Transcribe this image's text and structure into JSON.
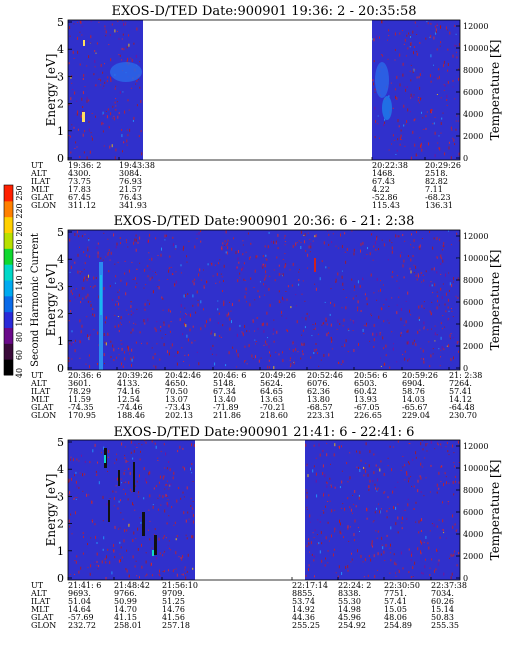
{
  "figure": {
    "colorbar": {
      "label": "Second Harmonic Current",
      "ticks": [
        "40",
        "60",
        "80",
        "100",
        "120",
        "140",
        "160",
        "180",
        "200",
        "220",
        "250"
      ],
      "colors": [
        "#000000",
        "#3a0a3a",
        "#6a0a8a",
        "#2a2ad8",
        "#0a6ae8",
        "#00aaf0",
        "#00d8c8",
        "#10d830",
        "#b8e000",
        "#ffd000",
        "#ff8000",
        "#ff2000"
      ]
    },
    "panels": [
      {
        "title": "EXOS-D/TED   Date:900901  19:36: 2 - 20:35:58",
        "ylabel_left": "Energy [eV]",
        "ylabel_right": "Temperature [K]",
        "yticks_left": [
          "0",
          "1",
          "2",
          "3",
          "4",
          "5"
        ],
        "yticks_right": [
          "0",
          "2000",
          "4000",
          "6000",
          "8000",
          "10000",
          "12000"
        ],
        "data_gap": true,
        "row_labels": [
          "UT",
          "ALT",
          "ILAT",
          "MLT",
          "GLAT",
          "GLON"
        ],
        "columns": [
          {
            "side": "left",
            "values": [
              "19:36: 2",
              "4300.",
              "73.75",
              "17.83",
              "67.45",
              "311.12"
            ]
          },
          {
            "side": "left",
            "values": [
              "19:43:38",
              "3084.",
              "76.93",
              "21.57",
              "76.43",
              "341.93"
            ]
          },
          {
            "side": "right",
            "values": [
              "20:22:38",
              "1468.",
              "67.43",
              "4.22",
              "-52.86",
              "115.43"
            ]
          },
          {
            "side": "right",
            "values": [
              "20:29:26",
              "2518.",
              "82.82",
              "7.11",
              "-68.23",
              "136.31"
            ]
          }
        ]
      },
      {
        "title": "EXOS-D/TED   Date:900901  20:36: 6 - 21: 2:38",
        "ylabel_left": "Energy [eV]",
        "ylabel_right": "Temperature [K]",
        "yticks_left": [
          "0",
          "1",
          "2",
          "3",
          "4",
          "5"
        ],
        "yticks_right": [
          "0",
          "2000",
          "4000",
          "6000",
          "8000",
          "10000",
          "12000"
        ],
        "data_gap": false,
        "row_labels": [
          "UT",
          "ALT",
          "ILAT",
          "MLT",
          "GLAT",
          "GLON"
        ],
        "columns": [
          {
            "values": [
              "20:36: 6",
              "3601.",
              "78.29",
              "11.59",
              "-74.35",
              "170.95"
            ]
          },
          {
            "values": [
              "20:39:26",
              "4133.",
              "74.16",
              "12.54",
              "-74.46",
              "188.46"
            ]
          },
          {
            "values": [
              "20:42:46",
              "4650.",
              "70.50",
              "13.07",
              "-73.43",
              "202.13"
            ]
          },
          {
            "values": [
              "20:46: 6",
              "5148.",
              "67.34",
              "13.40",
              "-71.89",
              "211.86"
            ]
          },
          {
            "values": [
              "20:49:26",
              "5624.",
              "64.65",
              "13.63",
              "-70.21",
              "218.60"
            ]
          },
          {
            "values": [
              "20:52:46",
              "6076.",
              "62.36",
              "13.80",
              "-68.57",
              "223.31"
            ]
          },
          {
            "values": [
              "20:56: 6",
              "6503.",
              "60.42",
              "13.93",
              "-67.05",
              "226.65"
            ]
          },
          {
            "values": [
              "20:59:26",
              "6904.",
              "58.76",
              "14.03",
              "-65.67",
              "229.04"
            ]
          },
          {
            "values": [
              "21: 2:38",
              "7264.",
              "57.41",
              "14.12",
              "-64.48",
              "230.70"
            ]
          }
        ]
      },
      {
        "title": "EXOS-D/TED   Date:900901  21:41: 6 - 22:41: 6",
        "ylabel_left": "Energy [eV]",
        "ylabel_right": "Temperature [K]",
        "yticks_left": [
          "0",
          "1",
          "2",
          "3",
          "4",
          "5"
        ],
        "yticks_right": [
          "0",
          "2000",
          "4000",
          "6000",
          "8000",
          "10000",
          "12000"
        ],
        "data_gap": true,
        "row_labels": [
          "UT",
          "ALT",
          "ILAT",
          "MLT",
          "GLAT",
          "GLON"
        ],
        "columns": [
          {
            "side": "left",
            "values": [
              "21:41: 6",
              "9693.",
              "51.04",
              "14.64",
              "-57.69",
              "232.72"
            ]
          },
          {
            "side": "left",
            "values": [
              "21:48:42",
              "9766.",
              "50.99",
              "14.70",
              "41.15",
              "258.01"
            ]
          },
          {
            "side": "left",
            "values": [
              "21:56:10",
              "9709.",
              "51.25",
              "14.76",
              "41.56",
              "257.18"
            ]
          },
          {
            "side": "right",
            "values": [
              "22:17:14",
              "8855.",
              "53.74",
              "14.92",
              "44.36",
              "255.25"
            ]
          },
          {
            "side": "right",
            "values": [
              "22:24: 2",
              "8338.",
              "55.30",
              "14.98",
              "45.96",
              "254.92"
            ]
          },
          {
            "side": "right",
            "values": [
              "22:30:50",
              "7751.",
              "57.41",
              "15.05",
              "48.06",
              "254.89"
            ]
          },
          {
            "side": "right",
            "values": [
              "22:37:38",
              "7034.",
              "60.26",
              "15.14",
              "50.83",
              "255.35"
            ]
          }
        ]
      }
    ]
  },
  "chart_data": {
    "type": "heatmap",
    "x_axis": "UT",
    "y_axis_left": {
      "label": "Energy [eV]",
      "range": [
        0,
        5
      ]
    },
    "y_axis_right": {
      "label": "Temperature [K]",
      "range": [
        0,
        12000
      ]
    },
    "color_scale": {
      "label": "Second Harmonic Current",
      "range": [
        40,
        250
      ]
    },
    "panels": [
      {
        "ut_start": "19:36: 2",
        "ut_end": "20:35:58",
        "data_gap": [
          "19:43:38",
          "20:22:38"
        ]
      },
      {
        "ut_start": "20:36: 6",
        "ut_end": "21: 2:38"
      },
      {
        "ut_start": "21:41: 6",
        "ut_end": "22:41: 6",
        "data_gap": [
          "21:56:10",
          "22:17:14"
        ]
      }
    ]
  }
}
